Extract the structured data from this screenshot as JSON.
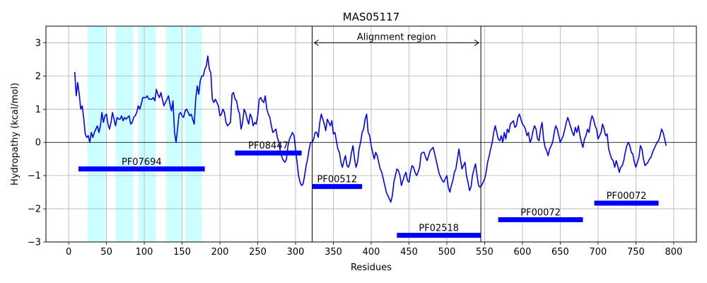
{
  "chart_data": {
    "type": "line",
    "title": "MAS05117",
    "xlabel": "Residues",
    "ylabel": "Hydropathy (kcal/mol)",
    "xlim": [
      -30,
      830
    ],
    "ylim": [
      -3,
      3.5
    ],
    "xticks": [
      0,
      50,
      100,
      150,
      200,
      250,
      300,
      350,
      400,
      450,
      500,
      550,
      600,
      650,
      700,
      750,
      800
    ],
    "yticks": [
      -3,
      -2,
      -1,
      0,
      1,
      2,
      3
    ],
    "grid": true,
    "zero_line": true,
    "line_color": "#0000ff",
    "series": [
      {
        "x": [
          8,
          10,
          12,
          14,
          16,
          18,
          20,
          22,
          24,
          26,
          28,
          30,
          32,
          34,
          36,
          38,
          40,
          42,
          44,
          46,
          48,
          50,
          52,
          54,
          56,
          58,
          60,
          62,
          64,
          66,
          68,
          70,
          72,
          74,
          76,
          78,
          80,
          82,
          84,
          86,
          88,
          90,
          92,
          94,
          96,
          98,
          100,
          102,
          104,
          106,
          108,
          110,
          112,
          114,
          116,
          118,
          120,
          122,
          124,
          126,
          128,
          130,
          132,
          134,
          136,
          138,
          140,
          142,
          144,
          146,
          148,
          150,
          152,
          154,
          156,
          158,
          160,
          162,
          164,
          166,
          168,
          170,
          172,
          174,
          176,
          178,
          180,
          182,
          184,
          186,
          188,
          190,
          192,
          194,
          196,
          198,
          200,
          202,
          204,
          206,
          208,
          210,
          212,
          214,
          216,
          218,
          220,
          222,
          224,
          226,
          228,
          230,
          232,
          234,
          236,
          238,
          240,
          242,
          244,
          246,
          248,
          250,
          252,
          254,
          256,
          258,
          260,
          262,
          264,
          266,
          268,
          270,
          272,
          274,
          276,
          278,
          280,
          282,
          284,
          286,
          288,
          290,
          292,
          294,
          296,
          298,
          300,
          302,
          304,
          306,
          308,
          310,
          312,
          314,
          316,
          318,
          320,
          322,
          324,
          326,
          328,
          330,
          332,
          334,
          336,
          338,
          340,
          342,
          344,
          346,
          348,
          350,
          352,
          354,
          356,
          358,
          360,
          362,
          364,
          366,
          368,
          370,
          372,
          374,
          376,
          378,
          380,
          382,
          384,
          386,
          388,
          390,
          392,
          394,
          396,
          398,
          400,
          402,
          404,
          406,
          408,
          410,
          412,
          414,
          416,
          418,
          420,
          422,
          424,
          426,
          428,
          430,
          432,
          434,
          436,
          438,
          440,
          442,
          444,
          446,
          448,
          450,
          452,
          454,
          456,
          458,
          460,
          462,
          464,
          466,
          468,
          470,
          472,
          474,
          476,
          478,
          480,
          482,
          484,
          486,
          488,
          490,
          492,
          494,
          496,
          498,
          500,
          502,
          504,
          506,
          508,
          510,
          512,
          514,
          516,
          518,
          520,
          522,
          524,
          526,
          528,
          530,
          532,
          534,
          536,
          538,
          540,
          542,
          544,
          546,
          548,
          550,
          552,
          554,
          556,
          558,
          560,
          562,
          564,
          566,
          568,
          570,
          572,
          574,
          576,
          578,
          580,
          582,
          584,
          586,
          588,
          590,
          592,
          594,
          596,
          598,
          600,
          602,
          604,
          606,
          608,
          610,
          612,
          614,
          616,
          618,
          620,
          622,
          624,
          626,
          628,
          630,
          632,
          634,
          636,
          638,
          640,
          642,
          644,
          646,
          648,
          650,
          652,
          654,
          656,
          658,
          660,
          662,
          664,
          666,
          668,
          670,
          672,
          674,
          676,
          678,
          680,
          682,
          684,
          686,
          688,
          690,
          692,
          694,
          696,
          698,
          700,
          702,
          704,
          706,
          708,
          710,
          712,
          714,
          716,
          718,
          720,
          722,
          724,
          726,
          728,
          730,
          732,
          734,
          736,
          738,
          740,
          742,
          744,
          746,
          748,
          750,
          752,
          754,
          756,
          758,
          760,
          762,
          764,
          766,
          768,
          770,
          772,
          774,
          776,
          778,
          780,
          782,
          784,
          786,
          788,
          790
        ],
        "y": [
          2.12,
          1.4,
          1.8,
          1.45,
          1.0,
          1.1,
          0.7,
          0.25,
          0.15,
          0.2,
          0.0,
          0.3,
          0.15,
          0.3,
          0.4,
          0.5,
          0.3,
          0.5,
          0.9,
          0.6,
          0.8,
          0.85,
          0.55,
          0.4,
          0.6,
          0.9,
          0.7,
          0.5,
          0.75,
          0.7,
          0.7,
          0.8,
          0.65,
          0.75,
          0.7,
          0.75,
          0.8,
          0.55,
          0.6,
          0.75,
          0.8,
          0.9,
          1.1,
          1.0,
          1.15,
          1.35,
          1.35,
          1.35,
          1.4,
          1.3,
          1.3,
          1.3,
          1.35,
          1.25,
          1.6,
          1.45,
          1.35,
          1.5,
          1.3,
          1.1,
          1.2,
          1.3,
          1.4,
          1.15,
          0.95,
          1.25,
          0.3,
          0.0,
          0.4,
          0.85,
          0.9,
          0.8,
          0.75,
          0.95,
          1.0,
          0.9,
          0.8,
          0.85,
          0.7,
          0.55,
          1.3,
          1.7,
          1.45,
          1.85,
          2.0,
          2.0,
          2.2,
          2.3,
          2.6,
          2.2,
          2.1,
          1.3,
          1.2,
          1.3,
          1.2,
          1.1,
          0.8,
          0.85,
          1.0,
          0.9,
          0.6,
          0.5,
          0.55,
          0.6,
          1.45,
          1.5,
          1.3,
          1.25,
          1.0,
          0.85,
          0.4,
          0.6,
          1.0,
          0.9,
          0.7,
          0.55,
          0.85,
          0.75,
          0.5,
          0.6,
          0.55,
          0.8,
          1.3,
          1.35,
          1.25,
          1.2,
          1.4,
          1.0,
          0.85,
          0.75,
          0.5,
          0.3,
          0.35,
          0.4,
          0.15,
          0.0,
          -0.3,
          -0.45,
          -0.55,
          -0.6,
          -0.5,
          -0.1,
          0.1,
          0.2,
          0.3,
          0.2,
          -0.2,
          -0.6,
          -1.0,
          -1.2,
          -1.3,
          -1.25,
          -1.0,
          -0.7,
          -0.5,
          -0.2,
          0.0,
          0.0,
          0.1,
          0.3,
          0.3,
          0.15,
          0.6,
          0.85,
          0.7,
          0.55,
          0.35,
          0.7,
          0.6,
          0.5,
          0.65,
          0.25,
          0.3,
          0.05,
          -0.2,
          -0.3,
          -0.6,
          -0.75,
          -0.55,
          -0.4,
          -0.7,
          -0.75,
          -0.6,
          -0.3,
          -0.1,
          -0.5,
          -0.75,
          -0.6,
          -0.2,
          0.0,
          0.3,
          0.4,
          0.7,
          0.85,
          0.3,
          0.2,
          -0.1,
          -0.3,
          -0.5,
          -0.3,
          -0.4,
          -0.6,
          -0.8,
          -0.9,
          -1.1,
          -1.3,
          -1.5,
          -1.6,
          -1.7,
          -1.8,
          -1.6,
          -1.2,
          -1.0,
          -0.8,
          -0.85,
          -1.0,
          -1.3,
          -1.15,
          -1.0,
          -0.9,
          -1.15,
          -1.2,
          -0.9,
          -0.7,
          -0.75,
          -0.9,
          -1.0,
          -0.9,
          -0.75,
          -0.35,
          -0.3,
          -0.3,
          -0.45,
          -0.55,
          -0.4,
          -0.25,
          -0.2,
          -0.15,
          -0.35,
          -0.55,
          -0.75,
          -0.95,
          -1.05,
          -1.15,
          -1.2,
          -1.1,
          -1.0,
          -1.35,
          -1.5,
          -1.3,
          -1.15,
          -0.9,
          -0.8,
          -0.5,
          -0.2,
          -0.5,
          -0.8,
          -0.7,
          -0.6,
          -1.0,
          -1.2,
          -1.45,
          -1.35,
          -1.0,
          -0.8,
          -0.65,
          -1.0,
          -1.3,
          -1.35,
          -1.3,
          -1.2,
          -1.1,
          -0.9,
          -0.6,
          -0.4,
          -0.2,
          0.0,
          0.3,
          0.5,
          0.3,
          0.1,
          0.05,
          0.2,
          0.0,
          0.3,
          0.1,
          0.4,
          0.3,
          0.55,
          0.6,
          0.65,
          0.45,
          0.5,
          0.75,
          0.85,
          0.7,
          0.55,
          0.5,
          0.4,
          0.2,
          0.3,
          0.0,
          0.1,
          0.35,
          0.5,
          0.4,
          0.1,
          0.05,
          0.4,
          0.6,
          0.1,
          -0.15,
          -0.25,
          -0.4,
          -0.2,
          -0.1,
          0.0,
          0.3,
          0.5,
          0.4,
          0.2,
          0.0,
          0.1,
          0.2,
          0.4,
          0.6,
          0.75,
          0.6,
          0.45,
          0.3,
          0.2,
          0.45,
          0.3,
          0.5,
          0.2,
          0.0,
          -0.15,
          0.1,
          0.2,
          0.4,
          0.3,
          0.6,
          0.8,
          0.7,
          0.5,
          0.4,
          0.1,
          0.2,
          0.3,
          0.55,
          0.4,
          0.2,
          0.25,
          -0.2,
          -0.35,
          -0.5,
          -0.55,
          -0.75,
          -0.55,
          -0.7,
          -0.9,
          -0.75,
          -0.7,
          -0.55,
          -0.3,
          -0.1,
          0.0,
          -0.1,
          -0.3,
          -0.35,
          -0.6,
          -0.75,
          -0.6,
          -0.45,
          -0.1,
          -0.2,
          -0.5,
          -0.7,
          -0.65,
          -0.6,
          -0.5,
          -0.45,
          -0.3,
          -0.2,
          -0.1,
          0.0,
          0.05,
          0.2,
          0.4,
          0.3,
          0.1,
          -0.1
        ]
      }
    ],
    "shaded_regions": [
      [
        25,
        49
      ],
      [
        62,
        85
      ],
      [
        92,
        115
      ],
      [
        129,
        150
      ],
      [
        154,
        176
      ]
    ],
    "shade_color": "#ccffff",
    "vlines": [
      322,
      545
    ],
    "span_arrow": {
      "from": 322,
      "to": 545,
      "y": 3.0,
      "label": "Alignment region"
    },
    "domain_bars": [
      {
        "label": "PF07694",
        "x0": 13,
        "x1": 180,
        "y": -0.8
      },
      {
        "label": "PF08447",
        "x0": 220,
        "x1": 308,
        "y": -0.32
      },
      {
        "label": "PF00512",
        "x0": 322,
        "x1": 388,
        "y": -1.33
      },
      {
        "label": "PF02518",
        "x0": 434,
        "x1": 545,
        "y": -2.8
      },
      {
        "label": "PF00072",
        "x0": 568,
        "x1": 680,
        "y": -2.33
      },
      {
        "label": "PF00072",
        "x0": 695,
        "x1": 780,
        "y": -1.83
      }
    ]
  }
}
